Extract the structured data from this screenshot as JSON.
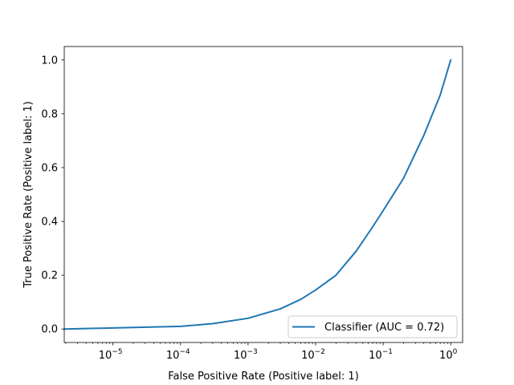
{
  "chart_data": {
    "type": "line",
    "title": "",
    "xlabel": "False Positive Rate (Positive label: 1)",
    "ylabel": "True Positive Rate (Positive label: 1)",
    "xscale": "log",
    "xlim": [
      1.9e-06,
      1.5
    ],
    "ylim": [
      -0.05,
      1.05
    ],
    "x_ticks": [
      {
        "value": 1e-05,
        "base": "10",
        "exp": "−5"
      },
      {
        "value": 0.0001,
        "base": "10",
        "exp": "−4"
      },
      {
        "value": 0.001,
        "base": "10",
        "exp": "−3"
      },
      {
        "value": 0.01,
        "base": "10",
        "exp": "−2"
      },
      {
        "value": 0.1,
        "base": "10",
        "exp": "−1"
      },
      {
        "value": 1,
        "base": "10",
        "exp": "0"
      }
    ],
    "y_ticks": [
      {
        "value": 0.0,
        "label": "0.0"
      },
      {
        "value": 0.2,
        "label": "0.2"
      },
      {
        "value": 0.4,
        "label": "0.4"
      },
      {
        "value": 0.6,
        "label": "0.6"
      },
      {
        "value": 0.8,
        "label": "0.8"
      },
      {
        "value": 1.0,
        "label": "1.0"
      }
    ],
    "grid": false,
    "legend_position": "lower-right",
    "series": [
      {
        "name": "Classifier (AUC = 0.72)",
        "color": "#1f77b4",
        "x": [
          1.9e-06,
          1e-05,
          0.0001,
          0.0003,
          0.001,
          0.003,
          0.006,
          0.01,
          0.02,
          0.04,
          0.07,
          0.1,
          0.2,
          0.4,
          0.7,
          1.0
        ],
        "y": [
          0.0,
          0.004,
          0.01,
          0.02,
          0.04,
          0.075,
          0.11,
          0.145,
          0.2,
          0.29,
          0.38,
          0.44,
          0.56,
          0.72,
          0.87,
          1.0
        ]
      }
    ]
  }
}
